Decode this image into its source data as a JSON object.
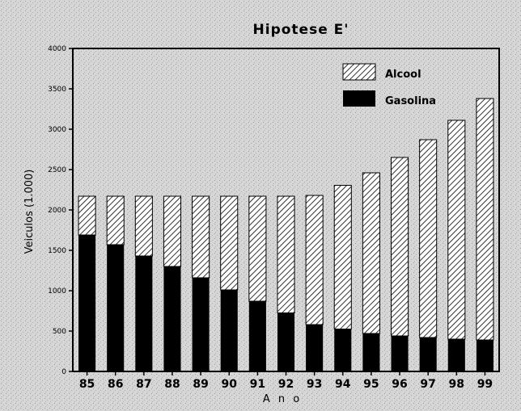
{
  "chart_data": {
    "type": "bar",
    "stacked": true,
    "title": "Hipotese E'",
    "xlabel": "A n o",
    "ylabel": "Veiculos (1.000)",
    "categories": [
      "85",
      "86",
      "87",
      "88",
      "89",
      "90",
      "91",
      "92",
      "93",
      "94",
      "95",
      "96",
      "97",
      "98",
      "99"
    ],
    "series": [
      {
        "name": "Gasolina",
        "pattern": "solid",
        "color": "#000000",
        "values": [
          1690,
          1570,
          1430,
          1300,
          1160,
          1010,
          870,
          725,
          580,
          525,
          470,
          440,
          420,
          400,
          390
        ]
      },
      {
        "name": "Alcool",
        "pattern": "hatched",
        "color": "#000000",
        "values": [
          480,
          600,
          740,
          870,
          1010,
          1160,
          1300,
          1445,
          1600,
          1780,
          1990,
          2210,
          2450,
          2710,
          2990
        ]
      }
    ],
    "ylim": [
      0,
      4000
    ],
    "yticks": [
      "0",
      "500",
      "1000",
      "1500",
      "2000",
      "2500",
      "3000",
      "3500",
      "4000"
    ],
    "legend_position": "top-right",
    "grid": false
  }
}
